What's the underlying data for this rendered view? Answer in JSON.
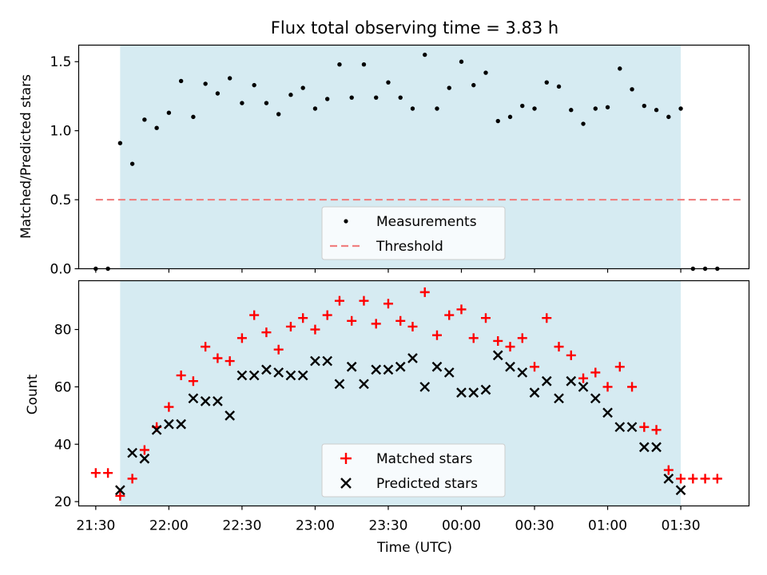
{
  "chart_data": [
    {
      "type": "scatter",
      "title": "Flux total observing time = 3.83 h",
      "ylabel": "Matched/Predicted stars",
      "xlabel": "",
      "ylim": [
        0,
        1.62
      ],
      "yticks": [
        "0.0",
        "0.5",
        "1.0",
        "1.5"
      ],
      "shaded_interval": [
        "21:40",
        "01:30"
      ],
      "shade_color": "#add8e6",
      "threshold": {
        "name": "Threshold",
        "value": 0.5,
        "x_range": [
          "21:30",
          "01:55"
        ],
        "color": "#f08080"
      },
      "series": [
        {
          "name": "Measurements",
          "marker": "dot",
          "color": "#000000",
          "points": [
            [
              "21:30",
              0.0
            ],
            [
              "21:35",
              0.0
            ],
            [
              "21:40",
              0.91
            ],
            [
              "21:45",
              0.76
            ],
            [
              "21:50",
              1.08
            ],
            [
              "21:55",
              1.02
            ],
            [
              "22:00",
              1.13
            ],
            [
              "22:05",
              1.36
            ],
            [
              "22:10",
              1.1
            ],
            [
              "22:15",
              1.34
            ],
            [
              "22:20",
              1.27
            ],
            [
              "22:25",
              1.38
            ],
            [
              "22:30",
              1.2
            ],
            [
              "22:35",
              1.33
            ],
            [
              "22:40",
              1.2
            ],
            [
              "22:45",
              1.12
            ],
            [
              "22:50",
              1.26
            ],
            [
              "22:55",
              1.31
            ],
            [
              "23:00",
              1.16
            ],
            [
              "23:05",
              1.23
            ],
            [
              "23:10",
              1.48
            ],
            [
              "23:15",
              1.24
            ],
            [
              "23:20",
              1.48
            ],
            [
              "23:25",
              1.24
            ],
            [
              "23:30",
              1.35
            ],
            [
              "23:35",
              1.24
            ],
            [
              "23:40",
              1.16
            ],
            [
              "23:45",
              1.55
            ],
            [
              "23:50",
              1.16
            ],
            [
              "23:55",
              1.31
            ],
            [
              "00:00",
              1.5
            ],
            [
              "00:05",
              1.33
            ],
            [
              "00:10",
              1.42
            ],
            [
              "00:15",
              1.07
            ],
            [
              "00:20",
              1.1
            ],
            [
              "00:25",
              1.18
            ],
            [
              "00:30",
              1.16
            ],
            [
              "00:35",
              1.35
            ],
            [
              "00:40",
              1.32
            ],
            [
              "00:45",
              1.15
            ],
            [
              "00:50",
              1.05
            ],
            [
              "00:55",
              1.16
            ],
            [
              "01:00",
              1.17
            ],
            [
              "01:05",
              1.45
            ],
            [
              "01:10",
              1.3
            ],
            [
              "01:15",
              1.18
            ],
            [
              "01:20",
              1.15
            ],
            [
              "01:25",
              1.1
            ],
            [
              "01:30",
              1.16
            ],
            [
              "01:35",
              0.0
            ],
            [
              "01:40",
              0.0
            ],
            [
              "01:45",
              0.0
            ]
          ]
        }
      ],
      "legend": {
        "entries": [
          "Measurements",
          "Threshold"
        ],
        "placement": "lower-center"
      }
    },
    {
      "type": "scatter",
      "title": "",
      "ylabel": "Count",
      "xlabel": "Time (UTC)",
      "ylim": [
        18.5,
        97
      ],
      "yticks": [
        "20",
        "40",
        "60",
        "80"
      ],
      "xlim": [
        "21:23",
        "01:58"
      ],
      "xticks": [
        "21:30",
        "22:00",
        "22:30",
        "23:00",
        "23:30",
        "00:00",
        "00:30",
        "01:00",
        "01:30"
      ],
      "shaded_interval": [
        "21:40",
        "01:30"
      ],
      "shade_color": "#add8e6",
      "series": [
        {
          "name": "Matched stars",
          "marker": "plus",
          "color": "#ff0000",
          "points": [
            [
              "21:30",
              30
            ],
            [
              "21:35",
              30
            ],
            [
              "21:40",
              22
            ],
            [
              "21:45",
              28
            ],
            [
              "21:50",
              38
            ],
            [
              "21:55",
              46
            ],
            [
              "22:00",
              53
            ],
            [
              "22:05",
              64
            ],
            [
              "22:10",
              62
            ],
            [
              "22:15",
              74
            ],
            [
              "22:20",
              70
            ],
            [
              "22:25",
              69
            ],
            [
              "22:30",
              77
            ],
            [
              "22:35",
              85
            ],
            [
              "22:40",
              79
            ],
            [
              "22:45",
              73
            ],
            [
              "22:50",
              81
            ],
            [
              "22:55",
              84
            ],
            [
              "23:00",
              80
            ],
            [
              "23:05",
              85
            ],
            [
              "23:10",
              90
            ],
            [
              "23:15",
              83
            ],
            [
              "23:20",
              90
            ],
            [
              "23:25",
              82
            ],
            [
              "23:30",
              89
            ],
            [
              "23:35",
              83
            ],
            [
              "23:40",
              81
            ],
            [
              "23:45",
              93
            ],
            [
              "23:50",
              78
            ],
            [
              "23:55",
              85
            ],
            [
              "00:00",
              87
            ],
            [
              "00:05",
              77
            ],
            [
              "00:10",
              84
            ],
            [
              "00:15",
              76
            ],
            [
              "00:20",
              74
            ],
            [
              "00:25",
              77
            ],
            [
              "00:30",
              67
            ],
            [
              "00:35",
              84
            ],
            [
              "00:40",
              74
            ],
            [
              "00:45",
              71
            ],
            [
              "00:50",
              63
            ],
            [
              "00:55",
              65
            ],
            [
              "01:00",
              60
            ],
            [
              "01:05",
              67
            ],
            [
              "01:10",
              60
            ],
            [
              "01:15",
              46
            ],
            [
              "01:20",
              45
            ],
            [
              "01:25",
              31
            ],
            [
              "01:30",
              28
            ],
            [
              "01:35",
              28
            ],
            [
              "01:40",
              28
            ],
            [
              "01:45",
              28
            ]
          ]
        },
        {
          "name": "Predicted stars",
          "marker": "x",
          "color": "#000000",
          "points": [
            [
              "21:40",
              24
            ],
            [
              "21:45",
              37
            ],
            [
              "21:50",
              35
            ],
            [
              "21:55",
              45
            ],
            [
              "22:00",
              47
            ],
            [
              "22:05",
              47
            ],
            [
              "22:10",
              56
            ],
            [
              "22:15",
              55
            ],
            [
              "22:20",
              55
            ],
            [
              "22:25",
              50
            ],
            [
              "22:30",
              64
            ],
            [
              "22:35",
              64
            ],
            [
              "22:40",
              66
            ],
            [
              "22:45",
              65
            ],
            [
              "22:50",
              64
            ],
            [
              "22:55",
              64
            ],
            [
              "23:00",
              69
            ],
            [
              "23:05",
              69
            ],
            [
              "23:10",
              61
            ],
            [
              "23:15",
              67
            ],
            [
              "23:20",
              61
            ],
            [
              "23:25",
              66
            ],
            [
              "23:30",
              66
            ],
            [
              "23:35",
              67
            ],
            [
              "23:40",
              70
            ],
            [
              "23:45",
              60
            ],
            [
              "23:50",
              67
            ],
            [
              "23:55",
              65
            ],
            [
              "00:00",
              58
            ],
            [
              "00:05",
              58
            ],
            [
              "00:10",
              59
            ],
            [
              "00:15",
              71
            ],
            [
              "00:20",
              67
            ],
            [
              "00:25",
              65
            ],
            [
              "00:30",
              58
            ],
            [
              "00:35",
              62
            ],
            [
              "00:40",
              56
            ],
            [
              "00:45",
              62
            ],
            [
              "00:50",
              60
            ],
            [
              "00:55",
              56
            ],
            [
              "01:00",
              51
            ],
            [
              "01:05",
              46
            ],
            [
              "01:10",
              46
            ],
            [
              "01:15",
              39
            ],
            [
              "01:20",
              39
            ],
            [
              "01:25",
              28
            ],
            [
              "01:30",
              24
            ]
          ]
        }
      ],
      "legend": {
        "entries": [
          "Matched stars",
          "Predicted stars"
        ],
        "placement": "lower-center"
      }
    }
  ]
}
